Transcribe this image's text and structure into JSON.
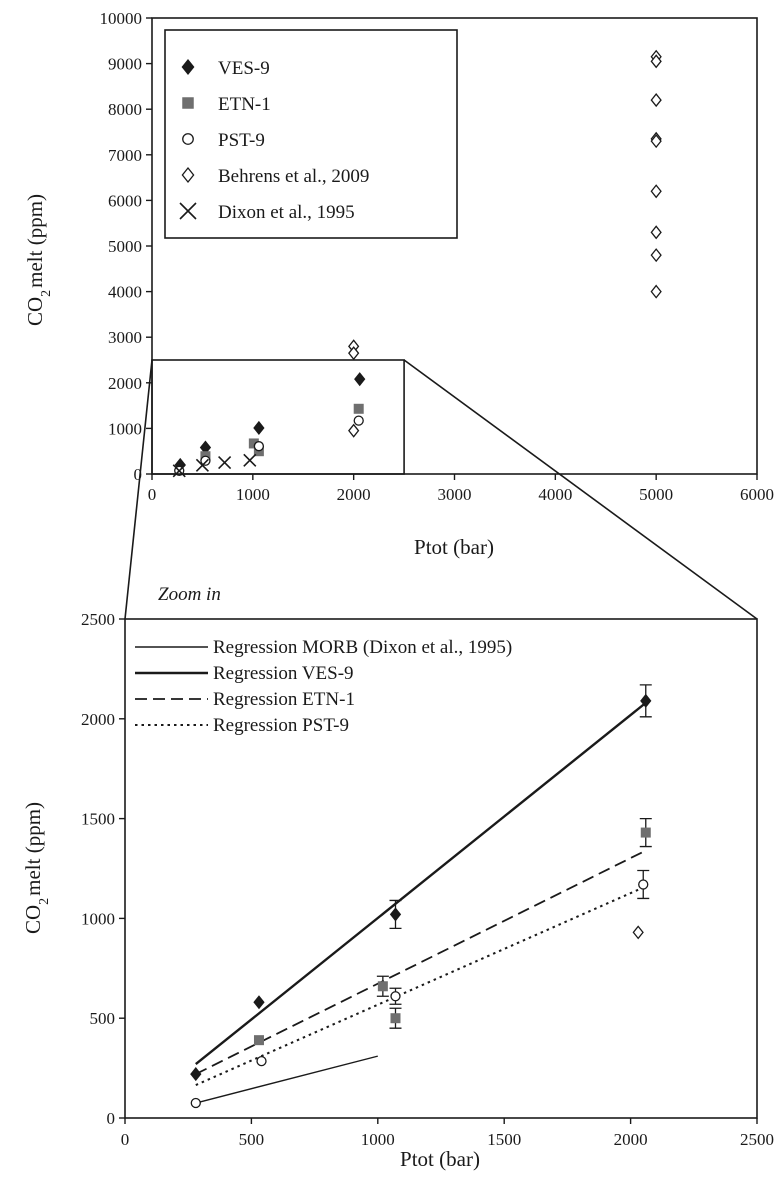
{
  "chart_data": [
    {
      "type": "scatter",
      "title": "",
      "xlabel": "Ptot (bar)",
      "ylabel_main": "CO",
      "ylabel_sub": "2",
      "ylabel_rest": "melt (ppm)",
      "xlim": [
        0,
        6000
      ],
      "ylim": [
        0,
        10000
      ],
      "xticks": [
        0,
        1000,
        2000,
        3000,
        4000,
        5000,
        6000
      ],
      "yticks": [
        0,
        1000,
        2000,
        3000,
        4000,
        5000,
        6000,
        7000,
        8000,
        9000,
        10000
      ],
      "legend_position": "top-left",
      "grid": false,
      "zoom_box": {
        "x": [
          0,
          2500
        ],
        "y": [
          0,
          2500
        ]
      },
      "series": [
        {
          "name": "VES-9",
          "marker": "diamond-filled",
          "points": [
            [
              280,
              200
            ],
            [
              530,
              580
            ],
            [
              1060,
              1010
            ],
            [
              2060,
              2080
            ]
          ]
        },
        {
          "name": "ETN-1",
          "marker": "square-filled",
          "points": [
            [
              530,
              390
            ],
            [
              1010,
              670
            ],
            [
              1060,
              500
            ],
            [
              2050,
              1430
            ]
          ]
        },
        {
          "name": "PST-9",
          "marker": "circle-open",
          "points": [
            [
              270,
              70
            ],
            [
              530,
              290
            ],
            [
              1060,
              610
            ],
            [
              2050,
              1170
            ]
          ]
        },
        {
          "name": "Behrens et al., 2009",
          "marker": "diamond-open",
          "points": [
            [
              2000,
              2800
            ],
            [
              2000,
              2650
            ],
            [
              2000,
              950
            ],
            [
              5000,
              9150
            ],
            [
              5000,
              9050
            ],
            [
              5000,
              8200
            ],
            [
              5000,
              7350
            ],
            [
              5000,
              7300
            ],
            [
              5000,
              6200
            ],
            [
              5000,
              5300
            ],
            [
              5000,
              4800
            ],
            [
              5000,
              4000
            ]
          ]
        },
        {
          "name": "Dixon et al., 1995",
          "marker": "x",
          "points": [
            [
              270,
              70
            ],
            [
              500,
              190
            ],
            [
              720,
              250
            ],
            [
              970,
              300
            ]
          ]
        }
      ]
    },
    {
      "type": "scatter",
      "title": "Zoom in",
      "xlabel": "Ptot (bar)",
      "ylabel_main": "CO",
      "ylabel_sub": "2",
      "ylabel_rest": "melt (ppm)",
      "xlim": [
        0,
        2500
      ],
      "ylim": [
        0,
        2500
      ],
      "xticks": [
        0,
        500,
        1000,
        1500,
        2000,
        2500
      ],
      "yticks": [
        0,
        500,
        1000,
        1500,
        2000,
        2500
      ],
      "legend_position": "top-left",
      "grid": false,
      "series": [
        {
          "name": "VES-9",
          "marker": "diamond-filled",
          "points": [
            [
              280,
              220,
              0
            ],
            [
              530,
              580,
              0
            ],
            [
              1070,
              1020,
              70
            ],
            [
              2060,
              2090,
              80
            ]
          ]
        },
        {
          "name": "ETN-1",
          "marker": "square-filled",
          "points": [
            [
              530,
              390,
              0
            ],
            [
              1020,
              660,
              50
            ],
            [
              1070,
              500,
              50
            ],
            [
              2060,
              1430,
              70
            ]
          ]
        },
        {
          "name": "PST-9",
          "marker": "circle-open",
          "points": [
            [
              280,
              75,
              0
            ],
            [
              540,
              285,
              0
            ],
            [
              1070,
              610,
              40
            ],
            [
              2050,
              1170,
              70
            ]
          ]
        },
        {
          "name": "Behrens et al., 2009",
          "marker": "diamond-open",
          "points": [
            [
              2030,
              930,
              0
            ]
          ]
        }
      ],
      "regressions": [
        {
          "name": "Regression MORB (Dixon et al., 1995)",
          "style": "thin-solid",
          "x": [
            280,
            1000
          ],
          "y": [
            75,
            310
          ]
        },
        {
          "name": "Regression VES-9",
          "style": "solid",
          "x": [
            280,
            2060
          ],
          "y": [
            270,
            2080
          ]
        },
        {
          "name": "Regression ETN-1",
          "style": "dashed",
          "x": [
            280,
            2060
          ],
          "y": [
            220,
            1340
          ]
        },
        {
          "name": "Regression PST-9",
          "style": "dotted",
          "x": [
            280,
            2060
          ],
          "y": [
            165,
            1160
          ]
        }
      ]
    }
  ]
}
